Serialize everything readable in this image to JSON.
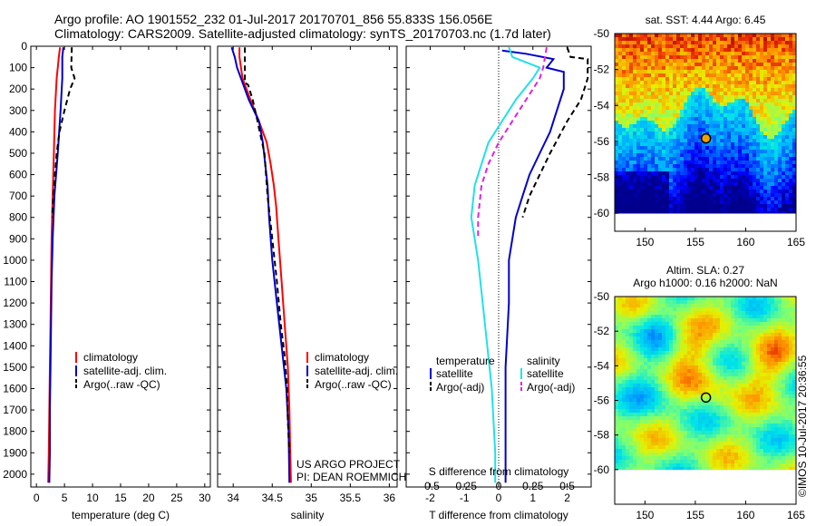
{
  "header": {
    "line1": "Argo profile: AO 1901552_232 01-Jul-2017 20170701_856 55.833S 156.056E",
    "line2": "Climatology: CARS2009. Satellite-adjusted climatology: synTS_20170703.nc (1.7d later)"
  },
  "colors": {
    "climatology": "#ff0000",
    "satellite": "#0000cc",
    "argo": "#000000",
    "satellite_salinity": "#22e0e8",
    "argo_salinity": "#e020e0"
  },
  "chart_data": [
    {
      "id": "temperature",
      "type": "line",
      "xlabel": "temperature (deg C)",
      "ylabel": "",
      "xlim": [
        -1,
        31
      ],
      "ylim": [
        2060,
        0
      ],
      "xticks": [
        0,
        5,
        10,
        15,
        20,
        25,
        30
      ],
      "yticks": [
        0,
        100,
        200,
        300,
        400,
        500,
        600,
        700,
        800,
        900,
        1000,
        1100,
        1200,
        1300,
        1400,
        1500,
        1600,
        1700,
        1800,
        1900,
        2000
      ],
      "legend": [
        "climatology",
        "satellite-adj. clim.",
        "Argo(..raw -QC)"
      ],
      "legend_position": "bottom-center",
      "series": [
        {
          "name": "climatology",
          "color": "#ff0000",
          "dash": "",
          "points": [
            [
              4.2,
              5
            ],
            [
              4.0,
              50
            ],
            [
              3.6,
              150
            ],
            [
              3.3,
              300
            ],
            [
              3.1,
              500
            ],
            [
              2.9,
              700
            ],
            [
              2.7,
              900
            ],
            [
              2.6,
              1100
            ],
            [
              2.5,
              1300
            ],
            [
              2.4,
              1500
            ],
            [
              2.3,
              1700
            ],
            [
              2.2,
              1900
            ],
            [
              2.1,
              2040
            ]
          ]
        },
        {
          "name": "satellite-adj. clim.",
          "color": "#0000cc",
          "dash": "",
          "points": [
            [
              4.8,
              5
            ],
            [
              4.6,
              50
            ],
            [
              4.6,
              150
            ],
            [
              4.3,
              300
            ],
            [
              3.8,
              500
            ],
            [
              3.2,
              700
            ],
            [
              2.9,
              900
            ],
            [
              2.7,
              1100
            ],
            [
              2.6,
              1300
            ],
            [
              2.5,
              1500
            ],
            [
              2.4,
              1700
            ],
            [
              2.4,
              1900
            ],
            [
              2.3,
              2040
            ]
          ]
        },
        {
          "name": "Argo(..raw -QC)",
          "color": "#000000",
          "dash": "6,4",
          "points": [
            [
              6.3,
              5
            ],
            [
              6.2,
              100
            ],
            [
              6.8,
              150
            ],
            [
              6.0,
              200
            ],
            [
              5.0,
              300
            ],
            [
              4.1,
              400
            ],
            [
              3.6,
              500
            ],
            [
              3.3,
              600
            ],
            [
              3.0,
              700
            ],
            [
              2.8,
              800
            ]
          ]
        }
      ]
    },
    {
      "id": "salinity",
      "type": "line",
      "xlabel": "salinity",
      "ylabel": "",
      "xlim": [
        33.8,
        36.1
      ],
      "ylim": [
        2060,
        0
      ],
      "xticks": [
        34,
        34.5,
        35,
        35.5,
        36
      ],
      "xticklabels": [
        "34",
        "34.5",
        "35",
        "35.5",
        "36"
      ],
      "legend": [
        "climatology",
        "satellite-adj. clim.",
        "Argo(..raw -QC)"
      ],
      "legend_position": "bottom-right",
      "series": [
        {
          "name": "climatology",
          "color": "#ff0000",
          "dash": "",
          "points": [
            [
              34.08,
              5
            ],
            [
              34.08,
              50
            ],
            [
              34.12,
              150
            ],
            [
              34.22,
              250
            ],
            [
              34.33,
              350
            ],
            [
              34.43,
              450
            ],
            [
              34.48,
              550
            ],
            [
              34.52,
              650
            ],
            [
              34.55,
              750
            ],
            [
              34.58,
              900
            ],
            [
              34.62,
              1100
            ],
            [
              34.66,
              1300
            ],
            [
              34.7,
              1500
            ],
            [
              34.72,
              1700
            ],
            [
              34.73,
              1900
            ],
            [
              34.74,
              2040
            ]
          ]
        },
        {
          "name": "satellite-adj. clim.",
          "color": "#0000cc",
          "dash": "",
          "points": [
            [
              33.98,
              5
            ],
            [
              34.02,
              50
            ],
            [
              34.05,
              100
            ],
            [
              34.1,
              150
            ],
            [
              34.2,
              250
            ],
            [
              34.33,
              350
            ],
            [
              34.38,
              450
            ],
            [
              34.41,
              550
            ],
            [
              34.44,
              650
            ],
            [
              34.46,
              800
            ],
            [
              34.5,
              1000
            ],
            [
              34.56,
              1200
            ],
            [
              34.62,
              1400
            ],
            [
              34.68,
              1600
            ],
            [
              34.71,
              1800
            ],
            [
              34.72,
              2040
            ]
          ]
        },
        {
          "name": "Argo(..raw -QC)",
          "color": "#000000",
          "dash": "6,4",
          "points": [
            [
              34.15,
              5
            ],
            [
              34.15,
              100
            ],
            [
              34.15,
              170
            ],
            [
              34.19,
              180
            ],
            [
              34.25,
              250
            ],
            [
              34.3,
              330
            ],
            [
              34.34,
              400
            ],
            [
              34.4,
              500
            ],
            [
              34.42,
              600
            ],
            [
              34.44,
              700
            ],
            [
              34.5,
              900
            ],
            [
              34.56,
              1100
            ],
            [
              34.61,
              1300
            ],
            [
              34.66,
              1450
            ],
            [
              34.69,
              1600
            ],
            [
              34.7,
              1750
            ],
            [
              34.72,
              1900
            ]
          ]
        }
      ],
      "annotations": [
        "US ARGO PROJECT",
        "PI: DEAN ROEMMICH"
      ]
    },
    {
      "id": "difference",
      "type": "line",
      "xlabel": "T difference from climatology",
      "x2label": "S difference from climatology",
      "xlim": [
        -2.7,
        2.7
      ],
      "ylim": [
        2060,
        0
      ],
      "xticks": [
        -2,
        -1,
        0,
        1,
        2
      ],
      "x2ticks": [
        -0.5,
        -0.25,
        0,
        0.25,
        0.5
      ],
      "legend": [
        "temperature",
        "satellite",
        "Argo(-adj)",
        "salinity",
        "satellite",
        "Argo(-adj)"
      ],
      "legend_position": "bottom-center",
      "series": [
        {
          "name": "temperature satellite",
          "color": "#0000cc",
          "dash": "",
          "points": [
            [
              0.1,
              20
            ],
            [
              0.8,
              35
            ],
            [
              1.6,
              60
            ],
            [
              1.4,
              100
            ],
            [
              1.9,
              120
            ],
            [
              1.9,
              200
            ],
            [
              1.7,
              300
            ],
            [
              1.5,
              400
            ],
            [
              1.2,
              500
            ],
            [
              0.9,
              600
            ],
            [
              0.7,
              700
            ],
            [
              0.5,
              800
            ],
            [
              0.4,
              900
            ],
            [
              0.3,
              1000
            ],
            [
              0.3,
              1200
            ],
            [
              0.2,
              1500
            ],
            [
              0.2,
              1800
            ],
            [
              0.2,
              2040
            ]
          ]
        },
        {
          "name": "temperature Argo(-adj)",
          "color": "#000000",
          "dash": "6,4",
          "points": [
            [
              2.0,
              5
            ],
            [
              2.1,
              50
            ],
            [
              2.6,
              60
            ],
            [
              2.6,
              150
            ],
            [
              2.4,
              250
            ],
            [
              2.0,
              350
            ],
            [
              1.5,
              500
            ],
            [
              1.2,
              600
            ],
            [
              0.9,
              700
            ],
            [
              0.7,
              800
            ]
          ]
        },
        {
          "name": "salinity satellite",
          "color": "#22e0e8",
          "dash": "",
          "points": [
            [
              0.3,
              5
            ],
            [
              0.4,
              50
            ],
            [
              1.2,
              100
            ],
            [
              1.0,
              150
            ],
            [
              0.5,
              250
            ],
            [
              0.1,
              350
            ],
            [
              -0.3,
              450
            ],
            [
              -0.5,
              550
            ],
            [
              -0.7,
              650
            ],
            [
              -0.8,
              800
            ],
            [
              -0.6,
              1000
            ],
            [
              -0.4,
              1300
            ],
            [
              -0.2,
              1600
            ],
            [
              -0.1,
              1900
            ],
            [
              -0.1,
              2040
            ]
          ]
        },
        {
          "name": "salinity Argo(-adj)",
          "color": "#e020e0",
          "dash": "6,4",
          "points": [
            [
              1.4,
              5
            ],
            [
              1.3,
              100
            ],
            [
              1.2,
              150
            ],
            [
              0.8,
              250
            ],
            [
              0.4,
              350
            ],
            [
              0.0,
              450
            ],
            [
              -0.3,
              550
            ],
            [
              -0.5,
              650
            ],
            [
              -0.6,
              800
            ],
            [
              -0.6,
              900
            ]
          ]
        }
      ],
      "zero_line": 0
    },
    {
      "id": "sst-map",
      "type": "heatmap",
      "title": "sat. SST: 4.44 Argo: 6.45",
      "xlim": [
        147,
        165
      ],
      "ylim": [
        -61,
        -50
      ],
      "xticks": [
        150,
        155,
        160,
        165
      ],
      "yticks": [
        -50,
        -52,
        -54,
        -56,
        -58,
        -60
      ],
      "marker": {
        "lon": 156.056,
        "lat": -55.833
      }
    },
    {
      "id": "sla-map",
      "type": "heatmap",
      "title": "Altim. SLA: 0.27",
      "subtitle": "Argo h1000: 0.16 h2000: NaN",
      "xlim": [
        147,
        165
      ],
      "ylim": [
        -62,
        -50
      ],
      "xticks": [
        150,
        155,
        160,
        165
      ],
      "yticks": [
        -50,
        -52,
        -54,
        -56,
        -58,
        -60
      ],
      "marker": {
        "lon": 156.056,
        "lat": -55.833
      }
    }
  ],
  "credit": "©IMOS 10-Jul-2017 20:36:55"
}
